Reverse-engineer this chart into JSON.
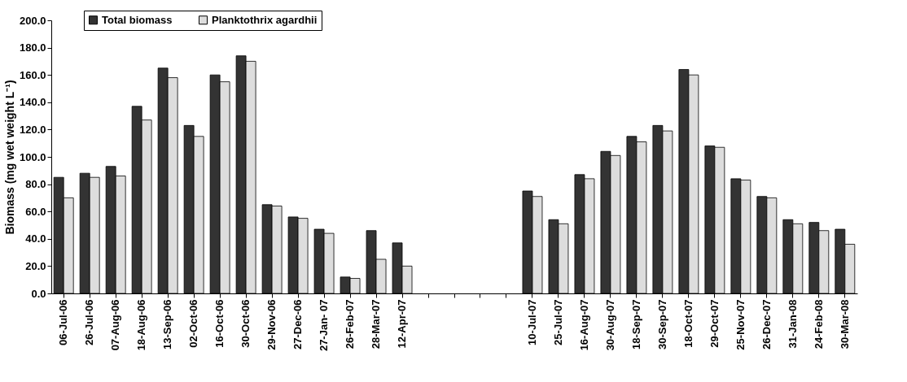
{
  "chart_data": {
    "type": "bar",
    "ylabel": "Biomass (mg wet weight L⁻¹)",
    "categories": [
      "06-Jul-06",
      "26-Jul-06",
      "07-Aug-06",
      "18-Aug-06",
      "13-Sep-06",
      "02-Oct-06",
      "16-Oct-06",
      "30-Oct-06",
      "29-Nov-06",
      "27-Dec-06",
      "27-Jan- 07",
      "26-Feb-07",
      "28-Mar-07",
      "12-Apr-07",
      null,
      null,
      null,
      null,
      "10-Jul-07",
      "25-Jul-07",
      "16-Aug-07",
      "30-Aug-07",
      "18-Sep-07",
      "30-Sep-07",
      "18-Oct-07",
      "29-Oct-07",
      "25-Nov-07",
      "26-Dec-07",
      "31-Jan-08",
      "24-Feb-08",
      "30-Mar-08"
    ],
    "series": [
      {
        "name": "Total biomass",
        "color": "#333333",
        "values": [
          85,
          88,
          93,
          137,
          165,
          123,
          160,
          174,
          65,
          56,
          47,
          12,
          46,
          37,
          null,
          null,
          null,
          null,
          75,
          54,
          87,
          104,
          115,
          123,
          164,
          108,
          84,
          71,
          54,
          52,
          47
        ]
      },
      {
        "name": "Planktothrix agardhii",
        "color": "#dddddd",
        "values": [
          70,
          85,
          86,
          127,
          158,
          115,
          155,
          170,
          64,
          55,
          44,
          11,
          25,
          20,
          null,
          null,
          null,
          null,
          71,
          51,
          84,
          101,
          111,
          119,
          160,
          107,
          83,
          70,
          51,
          46,
          36
        ]
      }
    ],
    "ylim": [
      0,
      200
    ],
    "yticks": [
      {
        "value": 0,
        "label": "0.0"
      },
      {
        "value": 20,
        "label": "20.0"
      },
      {
        "value": 40,
        "label": "40.0"
      },
      {
        "value": 60,
        "label": "60.0"
      },
      {
        "value": 80,
        "label": "80.0"
      },
      {
        "value": 100,
        "label": "100.0"
      },
      {
        "value": 120,
        "label": "120.0"
      },
      {
        "value": 140,
        "label": "140.0"
      },
      {
        "value": 160,
        "label": "160.0"
      },
      {
        "value": 180,
        "label": "180.0"
      },
      {
        "value": 200,
        "label": "200.0"
      }
    ],
    "grid": false,
    "legend": "top left"
  }
}
